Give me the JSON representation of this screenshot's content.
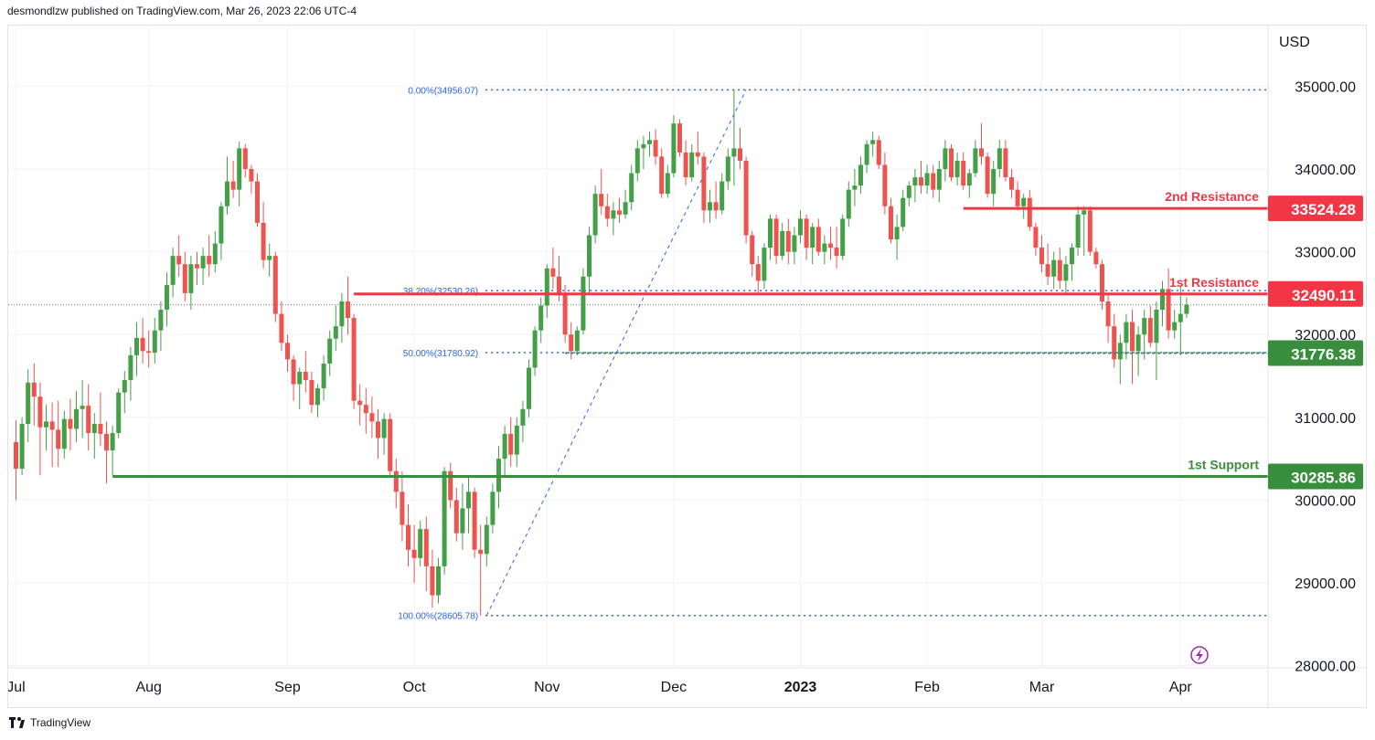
{
  "header": {
    "text": "desmondlzw published on TradingView.com, Mar 26, 2023 22:06 UTC-4"
  },
  "footer": {
    "brand": "TradingView"
  },
  "colors": {
    "up": "#43a047",
    "down": "#ef5350",
    "resistance": "#f23645",
    "support": "#388e3c",
    "fib": "#2962ff",
    "grid": "#f0f3fa"
  },
  "chart_data": {
    "type": "candlestick",
    "currency_label": "USD",
    "ylim": [
      28000,
      35600
    ],
    "y_ticks": [
      "35000.00",
      "34000.00",
      "33000.00",
      "32000.00",
      "31000.00",
      "30000.00",
      "29000.00",
      "28000.00"
    ],
    "x_ticks": [
      {
        "label": "Jul",
        "bar": 0
      },
      {
        "label": "Aug",
        "bar": 22
      },
      {
        "label": "Sep",
        "bar": 45
      },
      {
        "label": "Oct",
        "bar": 66
      },
      {
        "label": "Nov",
        "bar": 88
      },
      {
        "label": "Dec",
        "bar": 109
      },
      {
        "label": "2023",
        "bar": 130
      },
      {
        "label": "Feb",
        "bar": 151
      },
      {
        "label": "Mar",
        "bar": 170
      },
      {
        "label": "Apr",
        "bar": 193
      }
    ],
    "levels": [
      {
        "name": "2nd Resistance",
        "price": 33524.28,
        "price_label": "33524.28",
        "kind": "resistance",
        "from_bar": 157
      },
      {
        "name": "1st Resistance",
        "price": 32490.11,
        "price_label": "32490.11",
        "kind": "resistance",
        "from_bar": 56
      },
      {
        "name": "",
        "price": 31776.38,
        "price_label": "31776.38",
        "kind": "pivot",
        "from_bar": 91
      },
      {
        "name": "1st Support",
        "price": 30285.86,
        "price_label": "30285.86",
        "kind": "support",
        "from_bar": 16
      }
    ],
    "fibonacci": [
      {
        "label": "0.00%(34956.07)",
        "price": 34956.07
      },
      {
        "label": "38.20%(32530.26)",
        "price": 32530.26
      },
      {
        "label": "50.00%(31780.92)",
        "price": 31780.92
      },
      {
        "label": "100.00%(28605.78)",
        "price": 28605.78
      }
    ],
    "fib_anchor": {
      "low_bar": 78,
      "low": 28605.78,
      "high_bar": 121,
      "high": 34956.07
    },
    "last_price": 32360,
    "candles": [
      [
        30700,
        30960,
        30000,
        30380
      ],
      [
        30380,
        31000,
        30300,
        30920
      ],
      [
        30920,
        31580,
        30700,
        31420
      ],
      [
        31420,
        31650,
        30900,
        31250
      ],
      [
        31250,
        31420,
        30300,
        30880
      ],
      [
        30880,
        31150,
        30600,
        30950
      ],
      [
        30950,
        31180,
        30400,
        30850
      ],
      [
        30850,
        31200,
        30400,
        30620
      ],
      [
        30620,
        31080,
        30500,
        30980
      ],
      [
        30980,
        31220,
        30600,
        30860
      ],
      [
        30860,
        31320,
        30700,
        31100
      ],
      [
        31100,
        31450,
        30750,
        31140
      ],
      [
        31140,
        31400,
        30600,
        30810
      ],
      [
        30810,
        31050,
        30500,
        30920
      ],
      [
        30920,
        31300,
        30650,
        30800
      ],
      [
        30800,
        30950,
        30200,
        30600
      ],
      [
        30600,
        30900,
        30300,
        30810
      ],
      [
        30810,
        31350,
        30750,
        31300
      ],
      [
        31300,
        31560,
        31050,
        31450
      ],
      [
        31450,
        31850,
        31200,
        31750
      ],
      [
        31750,
        32150,
        31500,
        31960
      ],
      [
        31960,
        32200,
        31650,
        31800
      ],
      [
        31800,
        32050,
        31600,
        31780
      ],
      [
        31780,
        32200,
        31650,
        32050
      ],
      [
        32050,
        32400,
        31800,
        32300
      ],
      [
        32300,
        32750,
        32100,
        32600
      ],
      [
        32600,
        33050,
        32450,
        32950
      ],
      [
        32950,
        33200,
        32700,
        32850
      ],
      [
        32850,
        33000,
        32400,
        32500
      ],
      [
        32500,
        32950,
        32300,
        32850
      ],
      [
        32850,
        33000,
        32600,
        32800
      ],
      [
        32800,
        33050,
        32600,
        32950
      ],
      [
        32950,
        33200,
        32700,
        32850
      ],
      [
        32850,
        33250,
        32750,
        33100
      ],
      [
        33100,
        33600,
        32900,
        33550
      ],
      [
        33550,
        34150,
        33450,
        33850
      ],
      [
        33850,
        34100,
        33650,
        33750
      ],
      [
        33750,
        34330,
        33550,
        34250
      ],
      [
        34250,
        34300,
        33900,
        34000
      ],
      [
        34000,
        34050,
        33700,
        33850
      ],
      [
        33850,
        33950,
        33300,
        33350
      ],
      [
        33350,
        33600,
        32800,
        32900
      ],
      [
        32900,
        33100,
        32700,
        32950
      ],
      [
        32950,
        33000,
        32150,
        32250
      ],
      [
        32250,
        32400,
        31800,
        31900
      ],
      [
        31900,
        32000,
        31550,
        31700
      ],
      [
        31700,
        31750,
        31200,
        31400
      ],
      [
        31400,
        31600,
        31100,
        31550
      ],
      [
        31550,
        31800,
        31300,
        31450
      ],
      [
        31450,
        31550,
        31050,
        31150
      ],
      [
        31150,
        31400,
        31000,
        31350
      ],
      [
        31350,
        31750,
        31200,
        31650
      ],
      [
        31650,
        32050,
        31500,
        31950
      ],
      [
        31950,
        32350,
        31800,
        32100
      ],
      [
        32100,
        32500,
        31900,
        32400
      ],
      [
        32400,
        32700,
        32000,
        32200
      ],
      [
        32200,
        32250,
        31100,
        31200
      ],
      [
        31200,
        31400,
        30900,
        31150
      ],
      [
        31150,
        31350,
        30800,
        31050
      ],
      [
        31050,
        31250,
        30750,
        30950
      ],
      [
        30950,
        31100,
        30500,
        30750
      ],
      [
        30750,
        31050,
        30550,
        30980
      ],
      [
        30980,
        31050,
        30300,
        30350
      ],
      [
        30350,
        30500,
        29900,
        30100
      ],
      [
        30100,
        30350,
        29500,
        29700
      ],
      [
        29700,
        29950,
        29200,
        29400
      ],
      [
        29400,
        29700,
        29000,
        29300
      ],
      [
        29300,
        29750,
        29200,
        29650
      ],
      [
        29650,
        29800,
        28900,
        29200
      ],
      [
        29200,
        29400,
        28700,
        28850
      ],
      [
        28850,
        29300,
        28750,
        29200
      ],
      [
        29200,
        30400,
        29100,
        30350
      ],
      [
        30350,
        30450,
        29900,
        30000
      ],
      [
        30000,
        30150,
        29500,
        29600
      ],
      [
        29600,
        30200,
        29400,
        29900
      ],
      [
        29900,
        30300,
        29600,
        30100
      ],
      [
        30100,
        30150,
        29300,
        29400
      ],
      [
        29400,
        29700,
        28605,
        29350
      ],
      [
        29350,
        29800,
        29200,
        29700
      ],
      [
        29700,
        30200,
        29600,
        30100
      ],
      [
        30100,
        30650,
        29900,
        30500
      ],
      [
        30500,
        30900,
        30300,
        30800
      ],
      [
        30800,
        31000,
        30400,
        30550
      ],
      [
        30550,
        31000,
        30400,
        30900
      ],
      [
        30900,
        31200,
        30700,
        31100
      ],
      [
        31100,
        31700,
        31000,
        31600
      ],
      [
        31600,
        32100,
        31500,
        32050
      ],
      [
        32050,
        32450,
        31900,
        32350
      ],
      [
        32350,
        32850,
        32200,
        32800
      ],
      [
        32800,
        33050,
        32550,
        32700
      ],
      [
        32700,
        32950,
        32400,
        32500
      ],
      [
        32500,
        32600,
        31900,
        32000
      ],
      [
        32000,
        32150,
        31700,
        31800
      ],
      [
        31800,
        32100,
        31750,
        32050
      ],
      [
        32050,
        32800,
        32000,
        32700
      ],
      [
        32700,
        33300,
        32500,
        33200
      ],
      [
        33200,
        33800,
        33100,
        33700
      ],
      [
        33700,
        34000,
        33450,
        33550
      ],
      [
        33550,
        33700,
        33300,
        33400
      ],
      [
        33400,
        33600,
        33200,
        33500
      ],
      [
        33500,
        33650,
        33350,
        33450
      ],
      [
        33450,
        33750,
        33400,
        33600
      ],
      [
        33600,
        34050,
        33500,
        33950
      ],
      [
        33950,
        34350,
        33850,
        34250
      ],
      [
        34250,
        34400,
        34000,
        34300
      ],
      [
        34300,
        34450,
        34150,
        34350
      ],
      [
        34350,
        34480,
        34050,
        34150
      ],
      [
        34150,
        34250,
        33650,
        33700
      ],
      [
        33700,
        34050,
        33650,
        33950
      ],
      [
        33950,
        34650,
        33900,
        34550
      ],
      [
        34550,
        34600,
        34150,
        34200
      ],
      [
        34200,
        34350,
        33800,
        33900
      ],
      [
        33900,
        34300,
        33850,
        34200
      ],
      [
        34200,
        34450,
        34050,
        34150
      ],
      [
        34150,
        34200,
        33350,
        33500
      ],
      [
        33500,
        33750,
        33350,
        33600
      ],
      [
        33600,
        33850,
        33400,
        33500
      ],
      [
        33500,
        33950,
        33450,
        33850
      ],
      [
        33850,
        34250,
        33750,
        34150
      ],
      [
        34150,
        34956,
        33800,
        34250
      ],
      [
        34250,
        34500,
        34000,
        34100
      ],
      [
        34100,
        34150,
        33100,
        33200
      ],
      [
        33200,
        33250,
        32700,
        32850
      ],
      [
        32850,
        32950,
        32500,
        32650
      ],
      [
        32650,
        33100,
        32550,
        33050
      ],
      [
        33050,
        33450,
        32900,
        33400
      ],
      [
        33400,
        33450,
        32850,
        32950
      ],
      [
        32950,
        33350,
        32900,
        33250
      ],
      [
        33250,
        33400,
        32850,
        33000
      ],
      [
        33000,
        33300,
        32850,
        33200
      ],
      [
        33200,
        33500,
        33100,
        33400
      ],
      [
        33400,
        33450,
        32900,
        33050
      ],
      [
        33050,
        33350,
        32850,
        33300
      ],
      [
        33300,
        33400,
        32950,
        33000
      ],
      [
        33000,
        33200,
        32850,
        33100
      ],
      [
        33100,
        33300,
        32900,
        33050
      ],
      [
        33050,
        33300,
        32800,
        32950
      ],
      [
        32950,
        33450,
        32900,
        33400
      ],
      [
        33400,
        33850,
        33300,
        33750
      ],
      [
        33750,
        34000,
        33550,
        33800
      ],
      [
        33800,
        34150,
        33700,
        34050
      ],
      [
        34050,
        34350,
        33950,
        34300
      ],
      [
        34300,
        34450,
        34150,
        34350
      ],
      [
        34350,
        34400,
        34000,
        34050
      ],
      [
        34050,
        34200,
        33450,
        33550
      ],
      [
        33550,
        33650,
        33100,
        33150
      ],
      [
        33150,
        33450,
        32900,
        33300
      ],
      [
        33300,
        33750,
        33250,
        33650
      ],
      [
        33650,
        33850,
        33550,
        33800
      ],
      [
        33800,
        34000,
        33600,
        33900
      ],
      [
        33900,
        34100,
        33700,
        33800
      ],
      [
        33800,
        34050,
        33700,
        33950
      ],
      [
        33950,
        34050,
        33650,
        33750
      ],
      [
        33750,
        34100,
        33600,
        34000
      ],
      [
        34000,
        34350,
        33850,
        34250
      ],
      [
        34250,
        34300,
        33850,
        33900
      ],
      [
        33900,
        34200,
        33800,
        34100
      ],
      [
        34100,
        34200,
        33750,
        33800
      ],
      [
        33800,
        34000,
        33650,
        33950
      ],
      [
        33950,
        34350,
        33900,
        34250
      ],
      [
        34250,
        34550,
        34050,
        34150
      ],
      [
        34150,
        34200,
        33650,
        33700
      ],
      [
        33700,
        34100,
        33550,
        34000
      ],
      [
        34000,
        34350,
        33900,
        34250
      ],
      [
        34250,
        34350,
        33850,
        33900
      ],
      [
        33900,
        34000,
        33650,
        33750
      ],
      [
        33750,
        33850,
        33500,
        33550
      ],
      [
        33550,
        33700,
        33400,
        33650
      ],
      [
        33650,
        33750,
        33250,
        33300
      ],
      [
        33300,
        33350,
        32950,
        33050
      ],
      [
        33050,
        33200,
        32750,
        32850
      ],
      [
        32850,
        33100,
        32600,
        32700
      ],
      [
        32700,
        33000,
        32550,
        32900
      ],
      [
        32900,
        33050,
        32550,
        32650
      ],
      [
        32650,
        32950,
        32500,
        32850
      ],
      [
        32850,
        33100,
        32650,
        33050
      ],
      [
        33050,
        33550,
        32950,
        33450
      ],
      [
        33450,
        33550,
        32950,
        33500
      ],
      [
        33500,
        33550,
        32950,
        33000
      ],
      [
        33000,
        33050,
        32800,
        32850
      ],
      [
        32850,
        32900,
        32300,
        32400
      ],
      [
        32400,
        32500,
        31900,
        32100
      ],
      [
        32100,
        32250,
        31600,
        31700
      ],
      [
        31700,
        32000,
        31400,
        31900
      ],
      [
        31900,
        32250,
        31700,
        32150
      ],
      [
        32150,
        32300,
        31400,
        31800
      ],
      [
        31800,
        32100,
        31500,
        32000
      ],
      [
        32000,
        32300,
        31700,
        32200
      ],
      [
        32200,
        32350,
        31850,
        31900
      ],
      [
        31900,
        32400,
        31450,
        32300
      ],
      [
        32300,
        32650,
        32100,
        32550
      ],
      [
        32550,
        32800,
        31950,
        32050
      ],
      [
        32050,
        32300,
        31950,
        32150
      ],
      [
        32150,
        32600,
        31750,
        32250
      ],
      [
        32250,
        32450,
        32200,
        32360
      ]
    ]
  }
}
